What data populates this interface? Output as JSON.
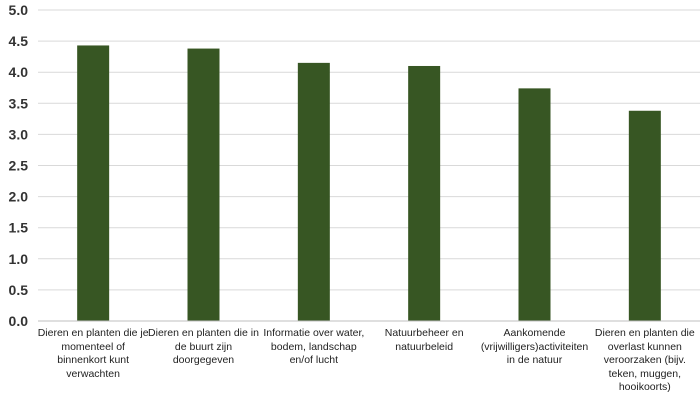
{
  "chart_data": {
    "type": "bar",
    "categories": [
      "Dieren en planten die je momenteel of binnenkort kunt verwachten",
      "Dieren en planten die in de buurt zijn doorgegeven",
      "Informatie over water, bodem, landschap en/of lucht",
      "Natuurbeheer en natuurbeleid",
      "Aankomende (vrijwilligers)activiteiten in de natuur",
      "Dieren en planten die overlast kunnen veroorzaken (bijv. teken, muggen, hooikoorts)"
    ],
    "values": [
      4.43,
      4.38,
      4.15,
      4.1,
      3.74,
      3.38
    ],
    "title": "",
    "xlabel": "",
    "ylabel": "",
    "ylim": [
      0,
      5
    ],
    "yticks": [
      "0.0",
      "0.5",
      "1.0",
      "1.5",
      "2.0",
      "2.5",
      "3.0",
      "3.5",
      "4.0",
      "4.5",
      "5.0"
    ],
    "grid": true,
    "colors": {
      "bar": "#375623",
      "grid": "#d9d9d9",
      "axis": "#bfbfbf"
    }
  }
}
